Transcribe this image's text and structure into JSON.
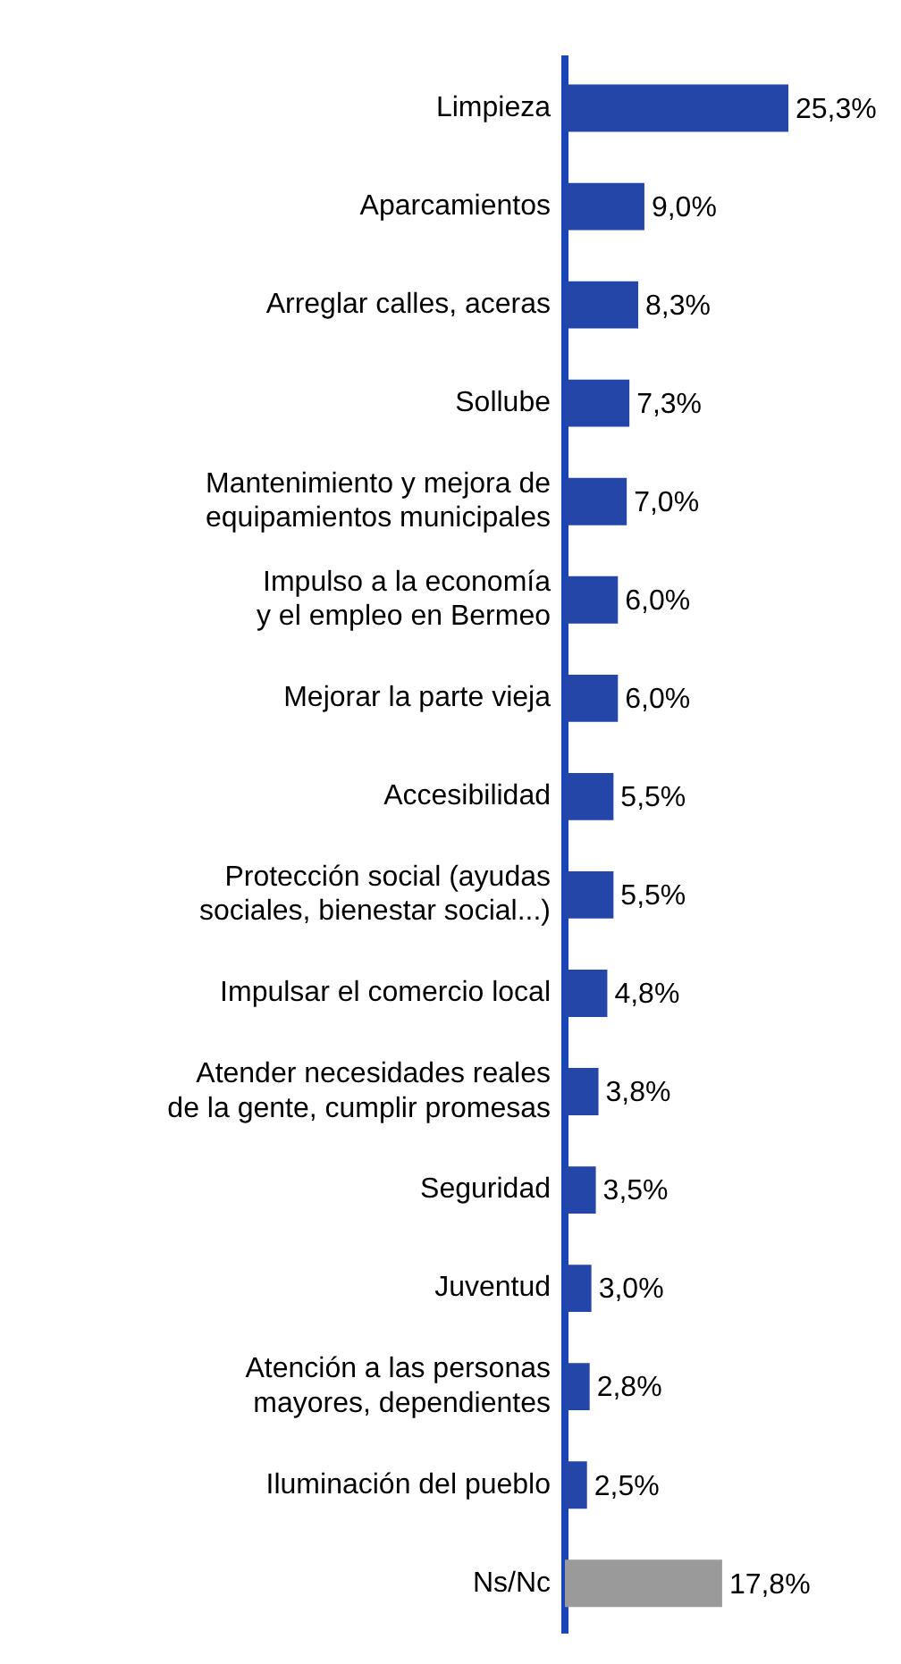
{
  "chart_data": {
    "type": "bar",
    "orientation": "horizontal",
    "categories": [
      "Limpieza",
      "Aparcamientos",
      "Arreglar calles, aceras",
      "Sollube",
      "Mantenimiento y mejora de equipamientos municipales",
      "Impulso a la economía y el empleo en Bermeo",
      "Mejorar la parte vieja",
      "Accesibilidad",
      "Protección social (ayudas sociales, bienestar social...)",
      "Impulsar el comercio local",
      "Atender necesidades reales de la gente, cumplir promesas",
      "Seguridad",
      "Juventud",
      "Atención a las personas mayores, dependientes",
      "Iluminación del pueblo",
      "Ns/Nc"
    ],
    "values": [
      25.3,
      9.0,
      8.3,
      7.3,
      7.0,
      6.0,
      6.0,
      5.5,
      5.5,
      4.8,
      3.8,
      3.5,
      3.0,
      2.8,
      2.5,
      17.8
    ],
    "value_labels": [
      "25,3%",
      "9,0%",
      "8,3%",
      "7,3%",
      "7,0%",
      "6,0%",
      "6,0%",
      "5,5%",
      "5,5%",
      "4,8%",
      "3,8%",
      "3,5%",
      "3,0%",
      "2,8%",
      "2,5%",
      "17,8%"
    ],
    "colors": [
      "#2346a8",
      "#2346a8",
      "#2346a8",
      "#2346a8",
      "#2346a8",
      "#2346a8",
      "#2346a8",
      "#2346a8",
      "#2346a8",
      "#2346a8",
      "#2346a8",
      "#2346a8",
      "#2346a8",
      "#2346a8",
      "#2346a8",
      "#9a9a9a"
    ],
    "legend": false
  }
}
